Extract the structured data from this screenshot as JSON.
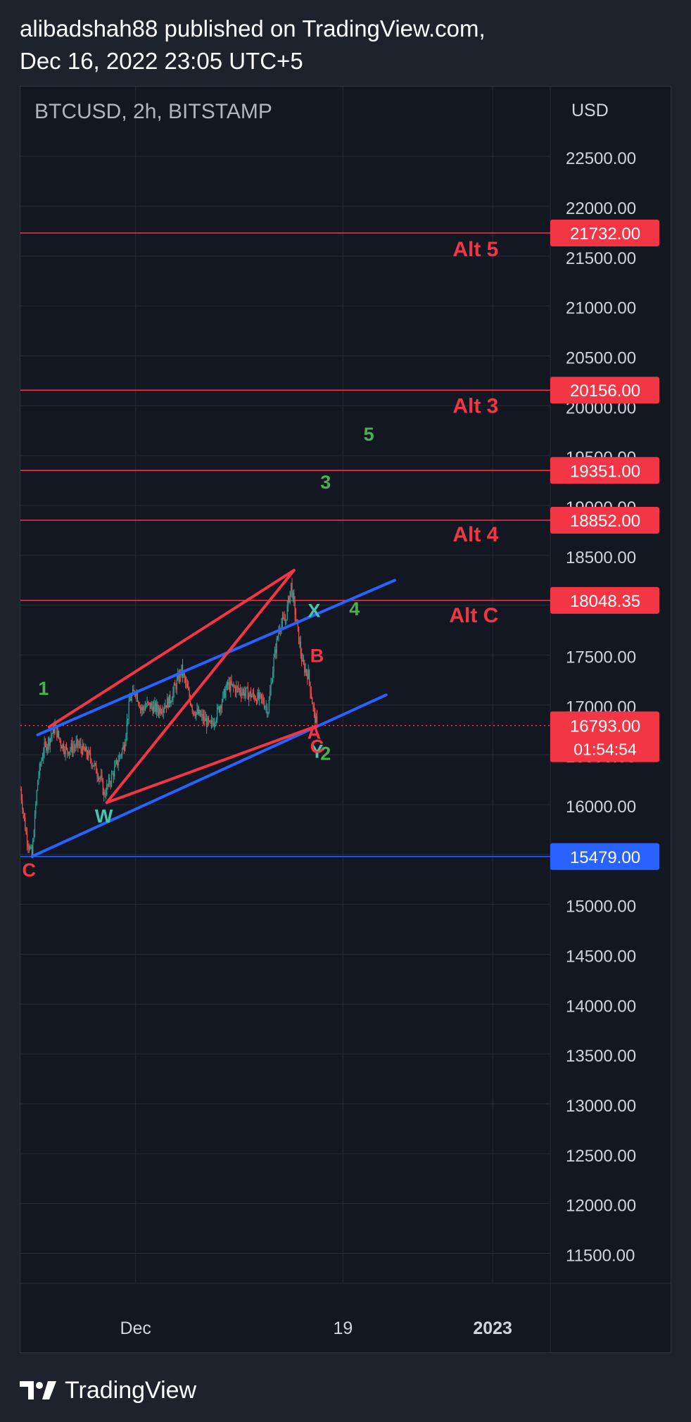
{
  "header": {
    "publisher_line": "alibadshah88 published on TradingView.com,",
    "date_line": "Dec 16, 2022 23:05 UTC+5"
  },
  "footer": {
    "brand": "TradingView"
  },
  "colors": {
    "background": "#131722",
    "page_background": "#1e222d",
    "grid": "#262b37",
    "up_candle": "#26a69a",
    "down_candle": "#ef5350",
    "level_red": "#f23645",
    "level_blue": "#2962ff",
    "wave_green": "#4caf50",
    "wave_teal": "#45c6b0",
    "axis_text": "#d1d4dc"
  },
  "chart_data": {
    "type": "candlestick",
    "title": "BTCUSD, 2h, BITSTAMP",
    "currency": "USD",
    "ylim": [
      11200,
      23200
    ],
    "y_ticks": [
      "11500.00",
      "12000.00",
      "12500.00",
      "13000.00",
      "13500.00",
      "14000.00",
      "14500.00",
      "15000.00",
      "15500.00",
      "16000.00",
      "16500.00",
      "17000.00",
      "17500.00",
      "18000.00",
      "18500.00",
      "19000.00",
      "19500.00",
      "20000.00",
      "20500.00",
      "21000.00",
      "21500.00",
      "22000.00",
      "22500.00"
    ],
    "x_ticks": [
      {
        "label": "Dec",
        "date": "2022-12-01",
        "bold": false
      },
      {
        "label": "19",
        "date": "2022-12-19",
        "bold": false
      },
      {
        "label": "2023",
        "date": "2023-01-01",
        "bold": true
      }
    ],
    "xlim": [
      "2022-11-21",
      "2023-01-06"
    ],
    "price_key_points": [
      {
        "t": "2022-11-21T00:00",
        "p": 16150
      },
      {
        "t": "2022-11-21T12:00",
        "p": 15700
      },
      {
        "t": "2022-11-22T00:00",
        "p": 15480
      },
      {
        "t": "2022-11-22T12:00",
        "p": 16250
      },
      {
        "t": "2022-11-23T00:00",
        "p": 16550
      },
      {
        "t": "2022-11-23T12:00",
        "p": 16650
      },
      {
        "t": "2022-11-24T00:00",
        "p": 16780
      },
      {
        "t": "2022-11-24T12:00",
        "p": 16620
      },
      {
        "t": "2022-11-25T00:00",
        "p": 16540
      },
      {
        "t": "2022-11-26T00:00",
        "p": 16600
      },
      {
        "t": "2022-11-27T00:00",
        "p": 16480
      },
      {
        "t": "2022-11-28T00:00",
        "p": 16250
      },
      {
        "t": "2022-11-28T06:00",
        "p": 16100
      },
      {
        "t": "2022-11-29T00:00",
        "p": 16300
      },
      {
        "t": "2022-11-30T00:00",
        "p": 16600
      },
      {
        "t": "2022-11-30T12:00",
        "p": 17050
      },
      {
        "t": "2022-12-01T00:00",
        "p": 17150
      },
      {
        "t": "2022-12-01T12:00",
        "p": 16950
      },
      {
        "t": "2022-12-02T00:00",
        "p": 17000
      },
      {
        "t": "2022-12-03T00:00",
        "p": 16950
      },
      {
        "t": "2022-12-04T00:00",
        "p": 17050
      },
      {
        "t": "2022-12-05T00:00",
        "p": 17350
      },
      {
        "t": "2022-12-05T12:00",
        "p": 17150
      },
      {
        "t": "2022-12-06T00:00",
        "p": 16950
      },
      {
        "t": "2022-12-07T00:00",
        "p": 16850
      },
      {
        "t": "2022-12-07T12:00",
        "p": 16780
      },
      {
        "t": "2022-12-08T00:00",
        "p": 16900
      },
      {
        "t": "2022-12-09T00:00",
        "p": 17200
      },
      {
        "t": "2022-12-10T00:00",
        "p": 17150
      },
      {
        "t": "2022-12-11T00:00",
        "p": 17100
      },
      {
        "t": "2022-12-12T00:00",
        "p": 17050
      },
      {
        "t": "2022-12-12T12:00",
        "p": 16950
      },
      {
        "t": "2022-12-13T00:00",
        "p": 17450
      },
      {
        "t": "2022-12-13T12:00",
        "p": 17800
      },
      {
        "t": "2022-12-14T00:00",
        "p": 17850
      },
      {
        "t": "2022-12-14T12:00",
        "p": 18200
      },
      {
        "t": "2022-12-15T00:00",
        "p": 17800
      },
      {
        "t": "2022-12-15T12:00",
        "p": 17400
      },
      {
        "t": "2022-12-16T00:00",
        "p": 17300
      },
      {
        "t": "2022-12-16T12:00",
        "p": 16900
      },
      {
        "t": "2022-12-16T18:00",
        "p": 16793
      }
    ],
    "horizontal_levels": [
      {
        "price": 21732.0,
        "label": "21732.00",
        "color": "#f23645",
        "line": "solid"
      },
      {
        "price": 20156.0,
        "label": "20156.00",
        "color": "#f23645",
        "line": "solid"
      },
      {
        "price": 19351.0,
        "label": "19351.00",
        "color": "#f23645",
        "line": "solid"
      },
      {
        "price": 18852.0,
        "label": "18852.00",
        "color": "#f23645",
        "line": "solid"
      },
      {
        "price": 18048.35,
        "label": "18048.35",
        "color": "#f23645",
        "line": "solid"
      },
      {
        "price": 15479.0,
        "label": "15479.00",
        "color": "#2962ff",
        "line": "solid"
      }
    ],
    "last_price": {
      "price": 16793.0,
      "label": "16793.00",
      "countdown": "01:54:54",
      "color": "#f23645"
    },
    "trend_lines": [
      {
        "color": "#2962ff",
        "from": {
          "t": "2022-11-22T00:00",
          "p": 15480
        },
        "to": {
          "t": "2022-12-22T18:00",
          "p": 17100
        }
      },
      {
        "color": "#2962ff",
        "from": {
          "t": "2022-11-22T12:00",
          "p": 16700
        },
        "to": {
          "t": "2022-12-23T12:00",
          "p": 18250
        }
      },
      {
        "color": "#f23645",
        "from": {
          "t": "2022-11-23T12:00",
          "p": 16780
        },
        "to": {
          "t": "2022-12-14T18:00",
          "p": 18350
        }
      },
      {
        "color": "#f23645",
        "from": {
          "t": "2022-11-28T12:00",
          "p": 16020
        },
        "to": {
          "t": "2022-12-14T18:00",
          "p": 18350
        }
      },
      {
        "color": "#f23645",
        "from": {
          "t": "2022-11-28T12:00",
          "p": 16020
        },
        "to": {
          "t": "2022-12-16T18:00",
          "p": 16790
        }
      }
    ],
    "annotations": [
      {
        "text": "Alt 5",
        "t": "2023-01-01T12:00",
        "p": 21500,
        "color": "#f23645"
      },
      {
        "text": "Alt 3",
        "t": "2023-01-01T12:00",
        "p": 19930,
        "color": "#f23645"
      },
      {
        "text": "Alt 4",
        "t": "2023-01-01T12:00",
        "p": 18640,
        "color": "#f23645"
      },
      {
        "text": "Alt C",
        "t": "2023-01-01T12:00",
        "p": 17830,
        "color": "#f23645"
      },
      {
        "text": "5",
        "t": "2022-12-21T06:00",
        "p": 19650,
        "color": "#4caf50"
      },
      {
        "text": "3",
        "t": "2022-12-17T12:00",
        "p": 19170,
        "color": "#4caf50"
      },
      {
        "text": "4",
        "t": "2022-12-20T00:00",
        "p": 17900,
        "color": "#4caf50"
      },
      {
        "text": "1",
        "t": "2022-11-23T00:00",
        "p": 17100,
        "color": "#4caf50"
      },
      {
        "text": "2",
        "t": "2022-12-17T12:00",
        "p": 16450,
        "color": "#4caf50"
      },
      {
        "text": "X",
        "t": "2022-12-16T12:00",
        "p": 17880,
        "color": "#45c6b0"
      },
      {
        "text": "W",
        "t": "2022-11-28T06:00",
        "p": 15820,
        "color": "#45c6b0"
      },
      {
        "text": "Y",
        "t": "2022-12-16T18:00",
        "p": 16470,
        "color": "#45c6b0"
      },
      {
        "text": "B",
        "t": "2022-12-16T18:00",
        "p": 17430,
        "color": "#f23645"
      },
      {
        "text": "A",
        "t": "2022-12-16T12:00",
        "p": 16660,
        "color": "#f23645"
      },
      {
        "text": "C",
        "t": "2022-12-16T18:00",
        "p": 16520,
        "color": "#f23645"
      },
      {
        "text": "C",
        "t": "2022-11-21T18:00",
        "p": 15280,
        "color": "#f23645"
      }
    ]
  }
}
